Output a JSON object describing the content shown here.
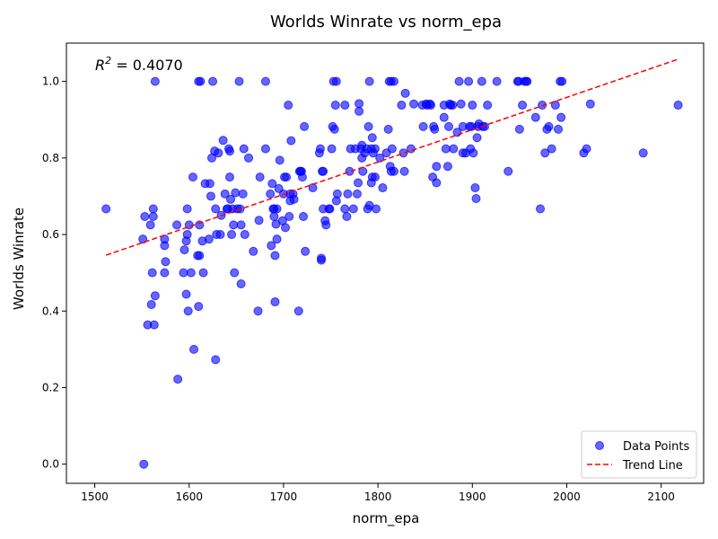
{
  "chart_data": {
    "type": "scatter",
    "title": "Worlds Winrate vs norm_epa",
    "xlabel": "norm_epa",
    "ylabel": "Worlds Winrate",
    "xlim": [
      1470,
      2145
    ],
    "ylim": [
      -0.05,
      1.1
    ],
    "xticks": [
      1500,
      1600,
      1700,
      1800,
      1900,
      2000,
      2100
    ],
    "yticks": [
      0.0,
      0.2,
      0.4,
      0.6,
      0.8,
      1.0
    ],
    "xtick_labels": [
      "1500",
      "1600",
      "1700",
      "1800",
      "1900",
      "2000",
      "2100"
    ],
    "ytick_labels": [
      "0.0",
      "0.2",
      "0.4",
      "0.6",
      "0.8",
      "1.0"
    ],
    "grid": false,
    "legend_position": "lower-right",
    "annotation": {
      "label_prefix": "R",
      "label_sup": "2",
      "label_suffix": " = 0.4070"
    },
    "series": [
      {
        "name": "Data Points",
        "color": "#0000ff",
        "points": [
          [
            1512,
            0.667
          ],
          [
            1551,
            0.588
          ],
          [
            1552,
            0.0
          ],
          [
            1553,
            0.647
          ],
          [
            1556,
            0.364
          ],
          [
            1559,
            0.625
          ],
          [
            1560,
            0.417
          ],
          [
            1561,
            0.5
          ],
          [
            1562,
            0.647
          ],
          [
            1562,
            0.667
          ],
          [
            1563,
            0.364
          ],
          [
            1564,
            1.0
          ],
          [
            1564,
            0.44
          ],
          [
            1574,
            0.571
          ],
          [
            1574,
            0.588
          ],
          [
            1574,
            0.5
          ],
          [
            1575,
            0.529
          ],
          [
            1587,
            0.625
          ],
          [
            1588,
            0.222
          ],
          [
            1594,
            0.5
          ],
          [
            1595,
            0.56
          ],
          [
            1597,
            0.444
          ],
          [
            1597,
            0.583
          ],
          [
            1598,
            0.6
          ],
          [
            1598,
            0.667
          ],
          [
            1599,
            0.4
          ],
          [
            1600,
            0.625
          ],
          [
            1602,
            0.5
          ],
          [
            1604,
            0.75
          ],
          [
            1605,
            0.3
          ],
          [
            1609,
            0.545
          ],
          [
            1610,
            0.412
          ],
          [
            1610,
            1.0
          ],
          [
            1611,
            0.625
          ],
          [
            1611,
            0.545
          ],
          [
            1612,
            1.0
          ],
          [
            1614,
            0.583
          ],
          [
            1615,
            0.5
          ],
          [
            1617,
            0.733
          ],
          [
            1621,
            0.588
          ],
          [
            1622,
            0.733
          ],
          [
            1623,
            0.7
          ],
          [
            1624,
            0.8
          ],
          [
            1625,
            1.0
          ],
          [
            1627,
            0.818
          ],
          [
            1628,
            0.667
          ],
          [
            1628,
            0.273
          ],
          [
            1629,
            0.6
          ],
          [
            1631,
            0.813
          ],
          [
            1633,
            0.6
          ],
          [
            1634,
            0.65
          ],
          [
            1636,
            0.846
          ],
          [
            1638,
            0.706
          ],
          [
            1640,
            0.667
          ],
          [
            1641,
            0.667
          ],
          [
            1642,
            0.824
          ],
          [
            1643,
            0.75
          ],
          [
            1643,
            0.818
          ],
          [
            1644,
            0.692
          ],
          [
            1645,
            0.6
          ],
          [
            1646,
            0.667
          ],
          [
            1647,
            0.625
          ],
          [
            1648,
            0.5
          ],
          [
            1649,
            0.709
          ],
          [
            1651,
            0.667
          ],
          [
            1653,
            1.0
          ],
          [
            1654,
            0.667
          ],
          [
            1655,
            0.625
          ],
          [
            1655,
            0.471
          ],
          [
            1657,
            0.706
          ],
          [
            1658,
            0.824
          ],
          [
            1659,
            0.6
          ],
          [
            1663,
            0.8
          ],
          [
            1668,
            0.556
          ],
          [
            1673,
            0.4
          ],
          [
            1674,
            0.637
          ],
          [
            1675,
            0.75
          ],
          [
            1681,
            1.0
          ],
          [
            1681,
            0.824
          ],
          [
            1686,
            0.706
          ],
          [
            1687,
            0.571
          ],
          [
            1688,
            0.733
          ],
          [
            1689,
            0.667
          ],
          [
            1690,
            0.647
          ],
          [
            1690,
            0.667
          ],
          [
            1691,
            0.424
          ],
          [
            1691,
            0.545
          ],
          [
            1692,
            0.627
          ],
          [
            1693,
            0.667
          ],
          [
            1693,
            0.588
          ],
          [
            1695,
            0.72
          ],
          [
            1696,
            0.794
          ],
          [
            1699,
            0.636
          ],
          [
            1700,
            0.706
          ],
          [
            1701,
            0.75
          ],
          [
            1702,
            0.618
          ],
          [
            1703,
            0.75
          ],
          [
            1705,
            0.938
          ],
          [
            1706,
            0.647
          ],
          [
            1707,
            0.706
          ],
          [
            1707,
            0.688
          ],
          [
            1708,
            0.845
          ],
          [
            1710,
            0.706
          ],
          [
            1711,
            0.692
          ],
          [
            1716,
            0.4
          ],
          [
            1717,
            0.765
          ],
          [
            1718,
            0.765
          ],
          [
            1719,
            0.765
          ],
          [
            1720,
            0.75
          ],
          [
            1721,
            0.647
          ],
          [
            1722,
            0.882
          ],
          [
            1723,
            0.556
          ],
          [
            1731,
            0.722
          ],
          [
            1738,
            0.813
          ],
          [
            1739,
            0.824
          ],
          [
            1740,
            0.533
          ],
          [
            1740,
            0.538
          ],
          [
            1741,
            0.765
          ],
          [
            1742,
            0.667
          ],
          [
            1742,
            0.765
          ],
          [
            1744,
            0.636
          ],
          [
            1745,
            0.625
          ],
          [
            1748,
            0.667
          ],
          [
            1749,
            0.667
          ],
          [
            1751,
            0.824
          ],
          [
            1752,
            0.882
          ],
          [
            1753,
            1.0
          ],
          [
            1754,
            0.875
          ],
          [
            1755,
            0.938
          ],
          [
            1756,
            1.0
          ],
          [
            1756,
            0.688
          ],
          [
            1757,
            0.706
          ],
          [
            1765,
            0.938
          ],
          [
            1765,
            0.667
          ],
          [
            1767,
            0.647
          ],
          [
            1768,
            0.706
          ],
          [
            1770,
            0.765
          ],
          [
            1771,
            0.824
          ],
          [
            1774,
            0.667
          ],
          [
            1776,
            0.824
          ],
          [
            1778,
            0.706
          ],
          [
            1779,
            0.735
          ],
          [
            1780,
            0.922
          ],
          [
            1780,
            0.942
          ],
          [
            1782,
            0.824
          ],
          [
            1783,
            0.8
          ],
          [
            1783,
            0.833
          ],
          [
            1784,
            0.765
          ],
          [
            1786,
            0.813
          ],
          [
            1788,
            0.824
          ],
          [
            1789,
            0.667
          ],
          [
            1790,
            0.882
          ],
          [
            1791,
            1.0
          ],
          [
            1791,
            0.676
          ],
          [
            1793,
            0.735
          ],
          [
            1793,
            0.824
          ],
          [
            1794,
            0.853
          ],
          [
            1794,
            0.75
          ],
          [
            1795,
            0.813
          ],
          [
            1797,
            0.75
          ],
          [
            1797,
            0.824
          ],
          [
            1798,
            0.667
          ],
          [
            1802,
            0.8
          ],
          [
            1805,
            0.722
          ],
          [
            1809,
            0.813
          ],
          [
            1811,
            0.875
          ],
          [
            1812,
            1.0
          ],
          [
            1813,
            0.778
          ],
          [
            1814,
            0.765
          ],
          [
            1814,
            1.0
          ],
          [
            1815,
            0.824
          ],
          [
            1817,
            1.0
          ],
          [
            1817,
            0.765
          ],
          [
            1825,
            0.938
          ],
          [
            1827,
            0.813
          ],
          [
            1828,
            0.765
          ],
          [
            1829,
            0.969
          ],
          [
            1835,
            0.824
          ],
          [
            1838,
            0.941
          ],
          [
            1847,
            0.938
          ],
          [
            1848,
            0.882
          ],
          [
            1851,
            0.941
          ],
          [
            1852,
            0.938
          ],
          [
            1855,
            0.941
          ],
          [
            1856,
            0.938
          ],
          [
            1858,
            0.75
          ],
          [
            1859,
            0.882
          ],
          [
            1860,
            0.875
          ],
          [
            1862,
            0.735
          ],
          [
            1862,
            0.778
          ],
          [
            1870,
            0.938
          ],
          [
            1870,
            0.906
          ],
          [
            1872,
            0.824
          ],
          [
            1874,
            0.778
          ],
          [
            1875,
            0.882
          ],
          [
            1876,
            0.941
          ],
          [
            1877,
            0.938
          ],
          [
            1879,
            0.938
          ],
          [
            1880,
            0.824
          ],
          [
            1884,
            0.867
          ],
          [
            1886,
            1.0
          ],
          [
            1888,
            0.941
          ],
          [
            1890,
            0.813
          ],
          [
            1890,
            0.882
          ],
          [
            1893,
            0.813
          ],
          [
            1896,
            1.0
          ],
          [
            1897,
            0.882
          ],
          [
            1898,
            0.824
          ],
          [
            1899,
            0.882
          ],
          [
            1900,
            0.938
          ],
          [
            1901,
            0.813
          ],
          [
            1903,
            0.722
          ],
          [
            1904,
            0.694
          ],
          [
            1905,
            0.853
          ],
          [
            1906,
            0.882
          ],
          [
            1907,
            0.889
          ],
          [
            1910,
            1.0
          ],
          [
            1911,
            0.882
          ],
          [
            1913,
            0.882
          ],
          [
            1916,
            0.938
          ],
          [
            1926,
            1.0
          ],
          [
            1938,
            0.765
          ],
          [
            1948,
            1.0
          ],
          [
            1949,
            1.0
          ],
          [
            1950,
            0.875
          ],
          [
            1953,
            0.938
          ],
          [
            1955,
            1.0
          ],
          [
            1957,
            1.0
          ],
          [
            1958,
            1.0
          ],
          [
            1967,
            0.906
          ],
          [
            1972,
            0.667
          ],
          [
            1974,
            0.938
          ],
          [
            1977,
            0.813
          ],
          [
            1979,
            0.875
          ],
          [
            1981,
            0.882
          ],
          [
            1984,
            0.824
          ],
          [
            1988,
            0.938
          ],
          [
            1991,
            0.875
          ],
          [
            1993,
            1.0
          ],
          [
            1994,
            0.906
          ],
          [
            1995,
            1.0
          ],
          [
            2018,
            0.813
          ],
          [
            2021,
            0.824
          ],
          [
            2025,
            0.941
          ],
          [
            2081,
            0.813
          ],
          [
            2118,
            0.938
          ]
        ]
      },
      {
        "name": "Trend Line",
        "color": "#ff0000",
        "type": "line",
        "style": "dashed",
        "x": [
          1512,
          2118
        ],
        "y": [
          0.546,
          1.058
        ]
      }
    ]
  }
}
